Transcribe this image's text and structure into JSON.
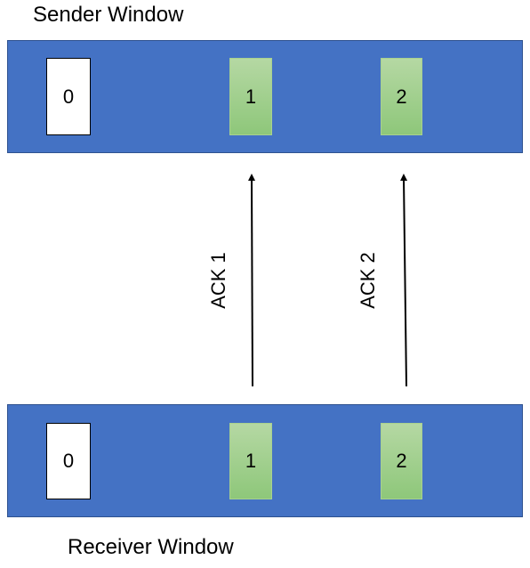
{
  "sender": {
    "title": "Sender Window",
    "packets": [
      "0",
      "1",
      "2"
    ]
  },
  "receiver": {
    "title": "Receiver Window",
    "packets": [
      "0",
      "1",
      "2"
    ]
  },
  "acks": [
    "ACK 1",
    "ACK 2"
  ],
  "colors": {
    "window": "#4472c4",
    "acked_packet": "#a9d18e",
    "unacked_packet": "#ffffff"
  }
}
